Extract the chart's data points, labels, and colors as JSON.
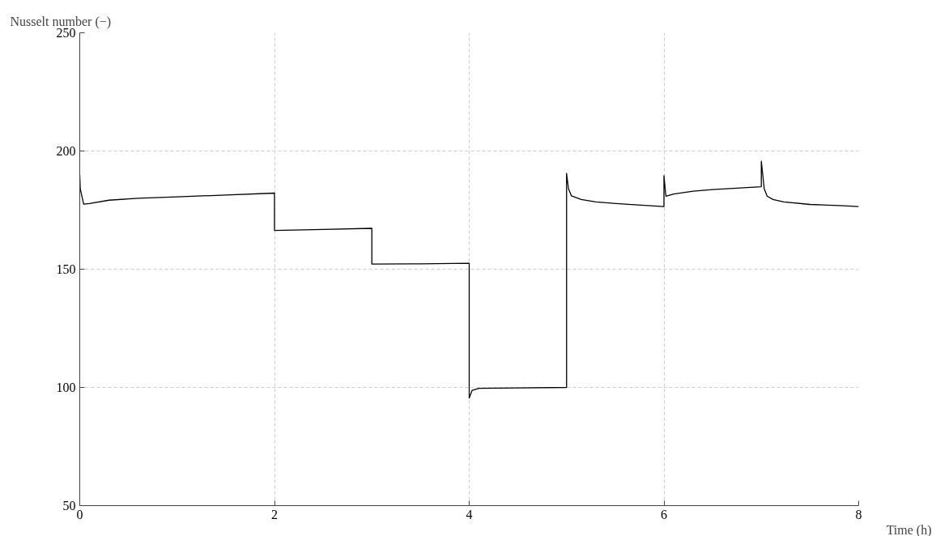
{
  "chart_data": {
    "type": "line",
    "xlabel": "Time (h)",
    "ylabel": "Nusselt number (−)",
    "x": [
      0,
      0.005,
      0.04,
      0.1,
      0.3,
      0.6,
      1,
      1.5,
      2,
      2,
      2.5,
      3,
      3,
      3.5,
      4,
      4,
      4.03,
      4.1,
      4.5,
      5,
      5,
      5.02,
      5.05,
      5.15,
      5.3,
      5.6,
      6,
      6,
      6.02,
      6.1,
      6.3,
      6.5,
      6.75,
      7,
      7,
      7.03,
      7.06,
      7.12,
      7.23,
      7.5,
      7.8,
      8
    ],
    "series": [
      {
        "color": "#000000",
        "values": [
          190,
          184,
          177.5,
          177.8,
          179.2,
          180,
          180.6,
          181.4,
          182.2,
          166.4,
          166.8,
          167.3,
          152.2,
          152.3,
          152.5,
          95.5,
          98.8,
          99.6,
          99.8,
          100,
          190.5,
          184,
          181,
          179.5,
          178.5,
          177.5,
          176.5,
          189.6,
          180.9,
          181.8,
          183,
          183.7,
          184.3,
          184.9,
          195.7,
          184,
          180.9,
          179.5,
          178.5,
          177.4,
          176.9,
          176.5
        ]
      }
    ],
    "xlim": [
      0,
      8
    ],
    "ylim": [
      50,
      250
    ],
    "xticks": [
      0,
      2,
      4,
      6,
      8
    ],
    "yticks": [
      50,
      100,
      150,
      200,
      250
    ],
    "grid": true,
    "marker": "none",
    "line_style": "solid"
  }
}
